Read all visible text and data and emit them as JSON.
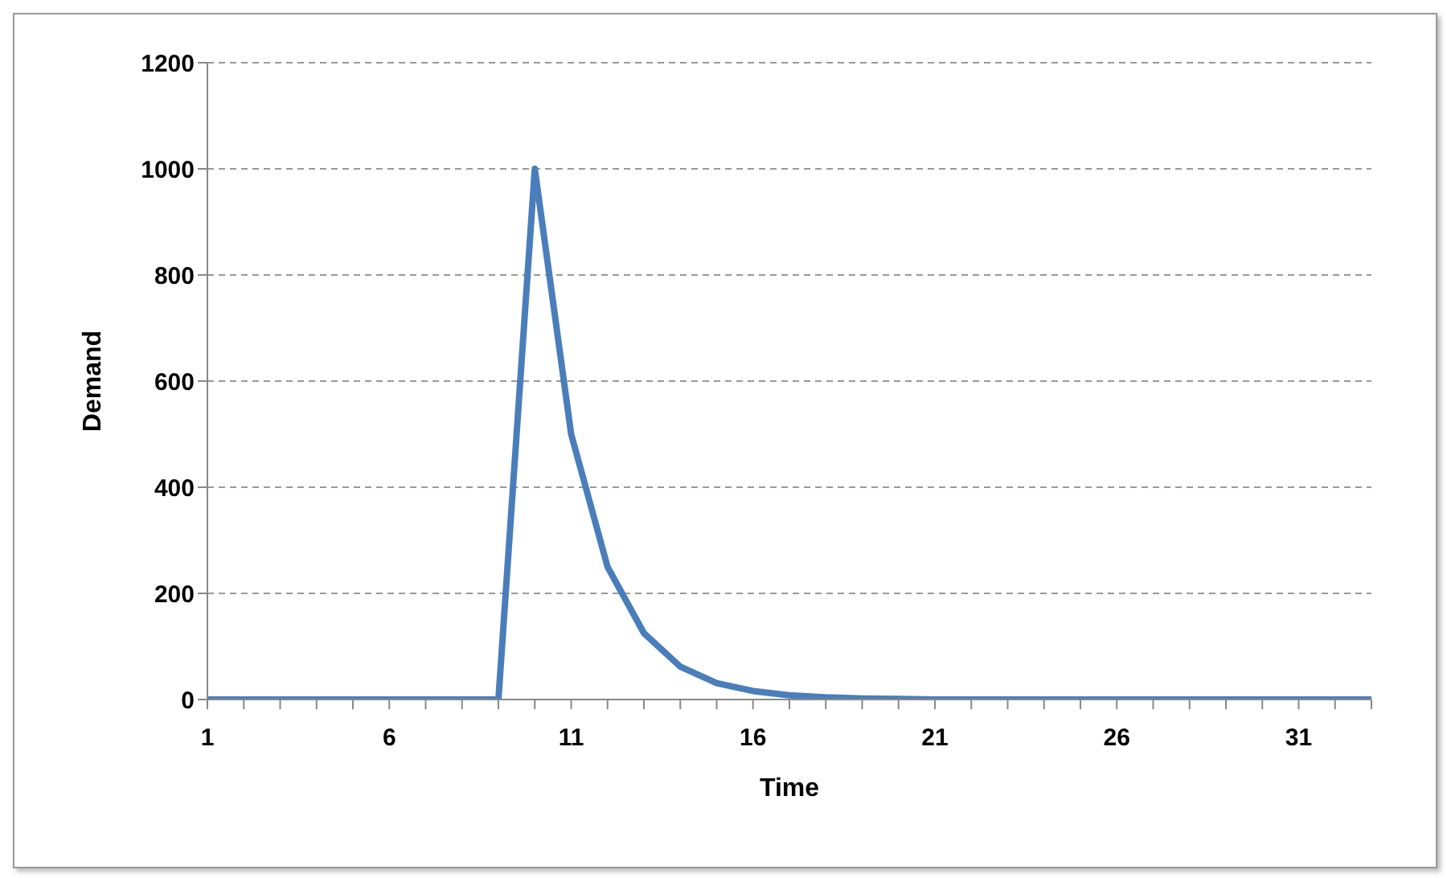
{
  "chart_data": {
    "type": "line",
    "xlabel": "Time",
    "ylabel": "Demand",
    "categories": [
      "1",
      null,
      null,
      null,
      null,
      "6",
      null,
      null,
      null,
      null,
      "11",
      null,
      null,
      null,
      null,
      "16",
      null,
      null,
      null,
      null,
      "21",
      null,
      null,
      null,
      null,
      "26",
      null,
      null,
      null,
      null,
      "31",
      null,
      null
    ],
    "series": [
      {
        "color": "#4a7ebb",
        "values": [
          0,
          0,
          0,
          0,
          0,
          0,
          0,
          0,
          0,
          1000,
          500,
          250,
          125,
          62,
          31,
          16,
          8,
          4,
          2,
          1,
          0,
          0,
          0,
          0,
          0,
          0,
          0,
          0,
          0,
          0,
          0,
          0,
          0
        ]
      }
    ],
    "ylim": [
      0,
      1200
    ],
    "yticks": [
      0,
      200,
      400,
      600,
      800,
      1000,
      1200
    ],
    "grid": "y",
    "legend": false,
    "marker": "none",
    "line_style": "solid"
  }
}
